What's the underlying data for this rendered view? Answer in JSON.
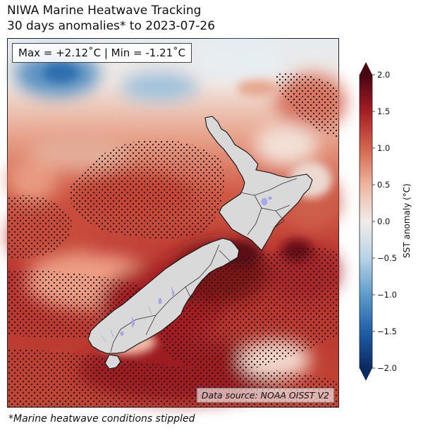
{
  "title": {
    "line1": "NIWA Marine Heatwave Tracking",
    "line2": "30 days anomalies* to 2023-07-26"
  },
  "stats": {
    "text": "Max = +2.12˚C | Min = -1.21˚C",
    "max": 2.12,
    "min": -1.21
  },
  "source": "Data source: NOAA OISST V2",
  "footnote": "*Marine heatwave conditions stippled",
  "colorbar": {
    "label": "SST anomaly (°C)",
    "range": [
      -2.0,
      2.0
    ],
    "ticks": [
      {
        "value": 2.0,
        "label": "2.0"
      },
      {
        "value": 1.5,
        "label": "1.5"
      },
      {
        "value": 1.0,
        "label": "1.0"
      },
      {
        "value": 0.5,
        "label": "0.5"
      },
      {
        "value": 0.0,
        "label": "0.0"
      },
      {
        "value": -0.5,
        "label": "−0.5"
      },
      {
        "value": -1.0,
        "label": "−1.0"
      },
      {
        "value": -1.5,
        "label": "−1.5"
      },
      {
        "value": -2.0,
        "label": "−2.0"
      }
    ],
    "colormap": [
      "#0b2a63",
      "#1f5fa8",
      "#5e9bcb",
      "#b7d3e6",
      "#f2ecea",
      "#eeb59f",
      "#d3644d",
      "#a61d25",
      "#4a0411"
    ]
  },
  "colors": {
    "land": "#d9d9d9",
    "lakes": "#a9a9f0",
    "stipple": "#1a1a1a"
  }
}
